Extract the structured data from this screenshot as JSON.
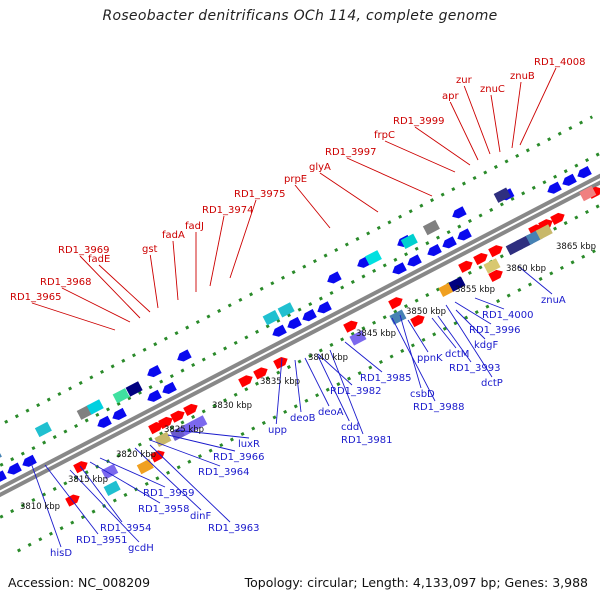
{
  "title": "Roseobacter denitrificans OCh 114, complete genome",
  "footer": {
    "accession": "Accession: NC_008209",
    "summary": "Topology: circular; Length: 4,133,097 bp; Genes: 3,988"
  },
  "colors": {
    "top_label": "#cc0000",
    "bottom_label": "#1a1acc",
    "forward_arrow": "#ff0000",
    "reverse_arrow": "#0a0aee",
    "backbone": "#888888",
    "dots": "#2a8a2a"
  },
  "ticks": [
    "3810 kbp",
    "3815 kbp",
    "3820 kbp",
    "3825 kbp",
    "3830 kbp",
    "3835 kbp",
    "3840 kbp",
    "3845 kbp",
    "3850 kbp",
    "3855 kbp",
    "3860 kbp",
    "3865 kbp"
  ],
  "top_labels": [
    "RD1_3965",
    "RD1_3968",
    "RD1_3969",
    "fadE",
    "gst",
    "fadA",
    "fadJ",
    "RD1_3974",
    "RD1_3975",
    "prpE",
    "glyA",
    "RD1_3997",
    "frpC",
    "RD1_3999",
    "apr",
    "zur",
    "znuC",
    "znuB",
    "RD1_4008"
  ],
  "bottom_labels": [
    "hisD",
    "RD1_3951",
    "gcdH",
    "RD1_3954",
    "RD1_3958",
    "RD1_3959",
    "dinF",
    "RD1_3963",
    "RD1_3964",
    "RD1_3966",
    "luxR",
    "upp",
    "deoB",
    "deoA",
    "cdd",
    "RD1_3981",
    "RD1_3982",
    "RD1_3985",
    "csbD",
    "RD1_3988",
    "ppnK",
    "dctM",
    "RD1_3993",
    "dctP",
    "kdgF",
    "RD1_3996",
    "RD1_4000",
    "znuA"
  ]
}
